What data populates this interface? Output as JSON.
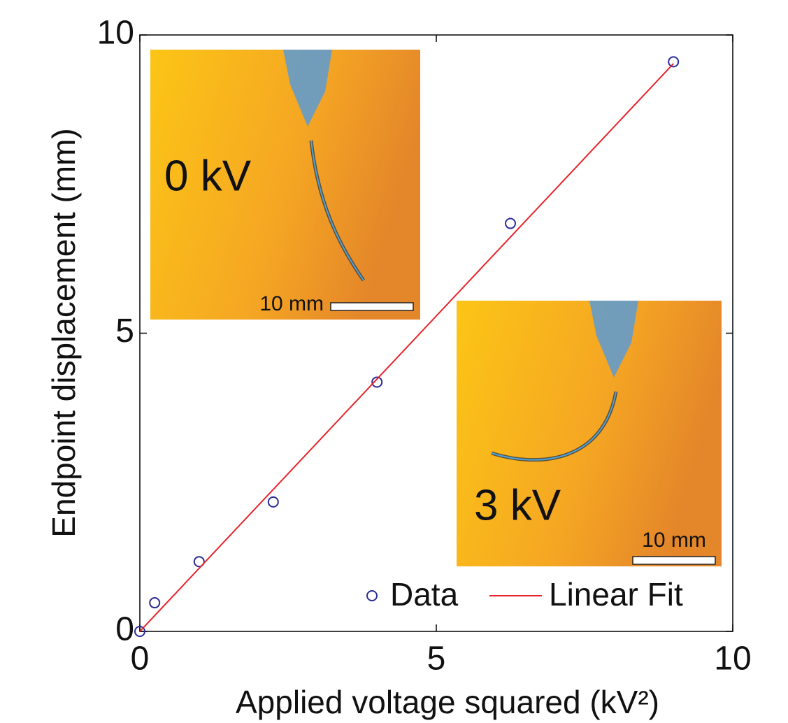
{
  "chart_data": {
    "type": "scatter",
    "xlabel": "Applied voltage squared (kV²)",
    "ylabel": "Endpoint displacement (mm)",
    "xlim": [
      0,
      10
    ],
    "ylim": [
      0,
      10
    ],
    "xticks": [
      0,
      5,
      10
    ],
    "yticks": [
      0,
      5,
      10
    ],
    "legend": "lower right",
    "series": [
      {
        "name": "Data",
        "type": "scatter",
        "color": "#2b2b9a",
        "x": [
          0,
          0.25,
          1,
          2.25,
          4,
          6.25,
          9
        ],
        "values": [
          0,
          0.48,
          1.17,
          2.17,
          4.18,
          6.84,
          9.55
        ]
      },
      {
        "name": "Linear Fit",
        "type": "line",
        "color": "#e8232a",
        "x": [
          0,
          9
        ],
        "values": [
          0,
          9.52
        ]
      }
    ]
  },
  "insets": [
    {
      "label": "0 kV",
      "scale_bar": "10 mm"
    },
    {
      "label": "3 kV",
      "scale_bar": "10 mm"
    }
  ]
}
